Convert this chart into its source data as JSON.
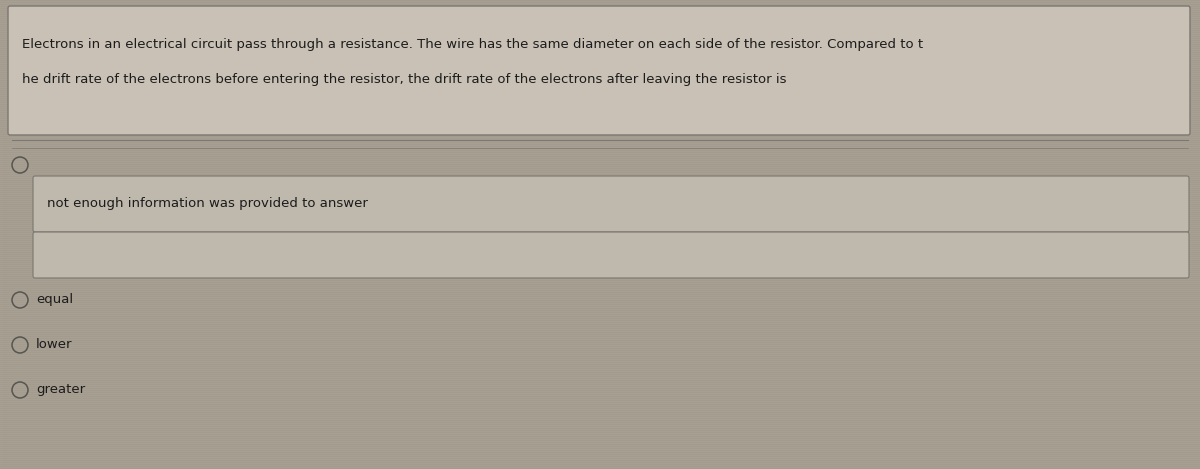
{
  "background_color": "#a89f93",
  "question_box_bg": "#c9c1b5",
  "question_box_border": "#7a7770",
  "option_box_bg": "#bfb8ac",
  "option_box_border": "#7a7770",
  "question_text_line1": "Electrons in an electrical circuit pass through a resistance. The wire has the same diameter on each side of the resistor. Compared to t",
  "question_text_line2": "he drift rate of the electrons before entering the resistor, the drift rate of the electrons after leaving the resistor is",
  "option1_label": "not enough information was provided to answer",
  "radio_options": [
    {
      "label": "equal"
    },
    {
      "label": "lower"
    },
    {
      "label": "greater"
    }
  ],
  "text_color": "#1c1c1c",
  "font_size_question": 9.5,
  "font_size_options": 9.5,
  "circle_color": "#555550",
  "separator_color": "#7a7770",
  "scanline_alpha": 0.04
}
